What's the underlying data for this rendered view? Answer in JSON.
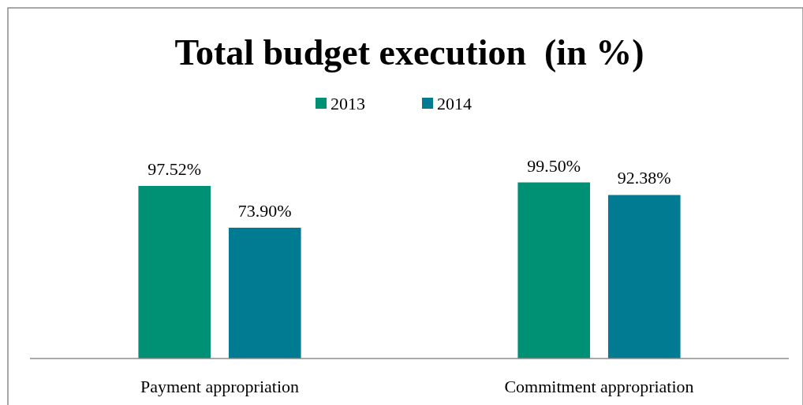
{
  "chart_data": {
    "type": "bar",
    "title": "Total budget execution  (in %)",
    "categories": [
      "Payment appropriation",
      "Commitment appropriation"
    ],
    "legend": "top",
    "series": [
      {
        "name": "2013",
        "color": "#009074",
        "values": [
          97.52,
          99.5
        ],
        "value_labels": [
          "97.52%",
          "99.50%"
        ]
      },
      {
        "name": "2014",
        "color": "#007b91",
        "values": [
          73.9,
          92.38
        ],
        "value_labels": [
          "73.90%",
          "92.38%"
        ]
      }
    ]
  }
}
